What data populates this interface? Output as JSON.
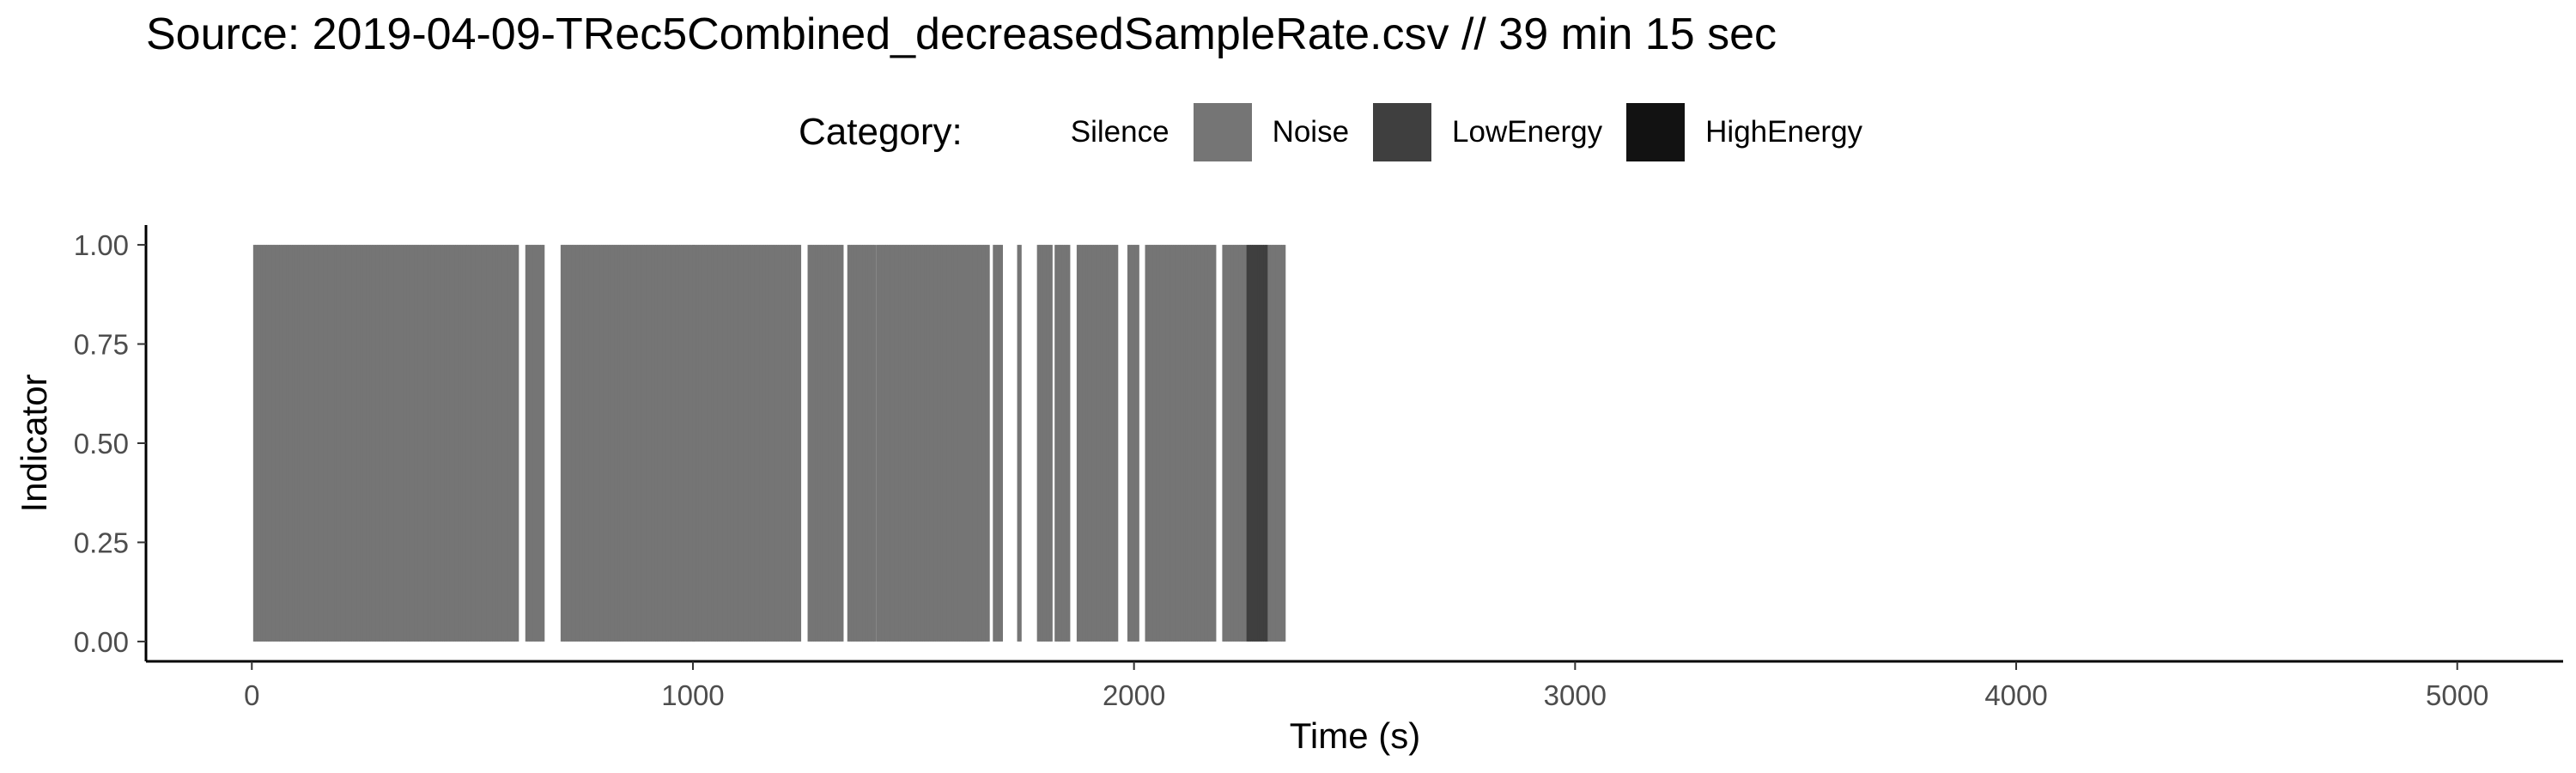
{
  "title": "Source: 2019-04-09-TRec5Combined_decreasedSampleRate.csv // 39 min 15 sec",
  "legend": {
    "title": "Category:",
    "items": [
      {
        "label": "Silence",
        "color": "#ffffff"
      },
      {
        "label": "Noise",
        "color": "#757575"
      },
      {
        "label": "LowEnergy",
        "color": "#3f3f3f"
      },
      {
        "label": "HighEnergy",
        "color": "#121212"
      }
    ]
  },
  "chart_data": {
    "type": "bar",
    "xlabel": "Time (s)",
    "ylabel": "Indicator",
    "xlim": [
      -240,
      5240
    ],
    "ylim": [
      -0.05,
      1.05
    ],
    "xticks": [
      0,
      1000,
      2000,
      3000,
      4000,
      5000
    ],
    "yticks": [
      "0.00",
      "0.25",
      "0.50",
      "0.75",
      "1.00"
    ],
    "grid": false,
    "legend_position": "top",
    "bar_value": 1.0,
    "series": [
      {
        "name": "Noise",
        "color": "#757575",
        "present_ranges": [
          [
            3,
            600
          ],
          [
            620,
            660
          ],
          [
            700,
            1000
          ],
          [
            1000,
            1240
          ],
          [
            1260,
            1340
          ],
          [
            1350,
            1410
          ],
          [
            1415,
            1670
          ],
          [
            1680,
            1700
          ],
          [
            1735,
            1740
          ],
          [
            1780,
            1810
          ],
          [
            1820,
            1850
          ],
          [
            1870,
            1960
          ],
          [
            1985,
            2010
          ],
          [
            2025,
            2185
          ],
          [
            2200,
            2255
          ],
          [
            2300,
            2340
          ]
        ]
      },
      {
        "name": "LowEnergy",
        "color": "#3f3f3f",
        "present_ranges": [
          [
            2255,
            2300
          ]
        ]
      }
    ]
  }
}
